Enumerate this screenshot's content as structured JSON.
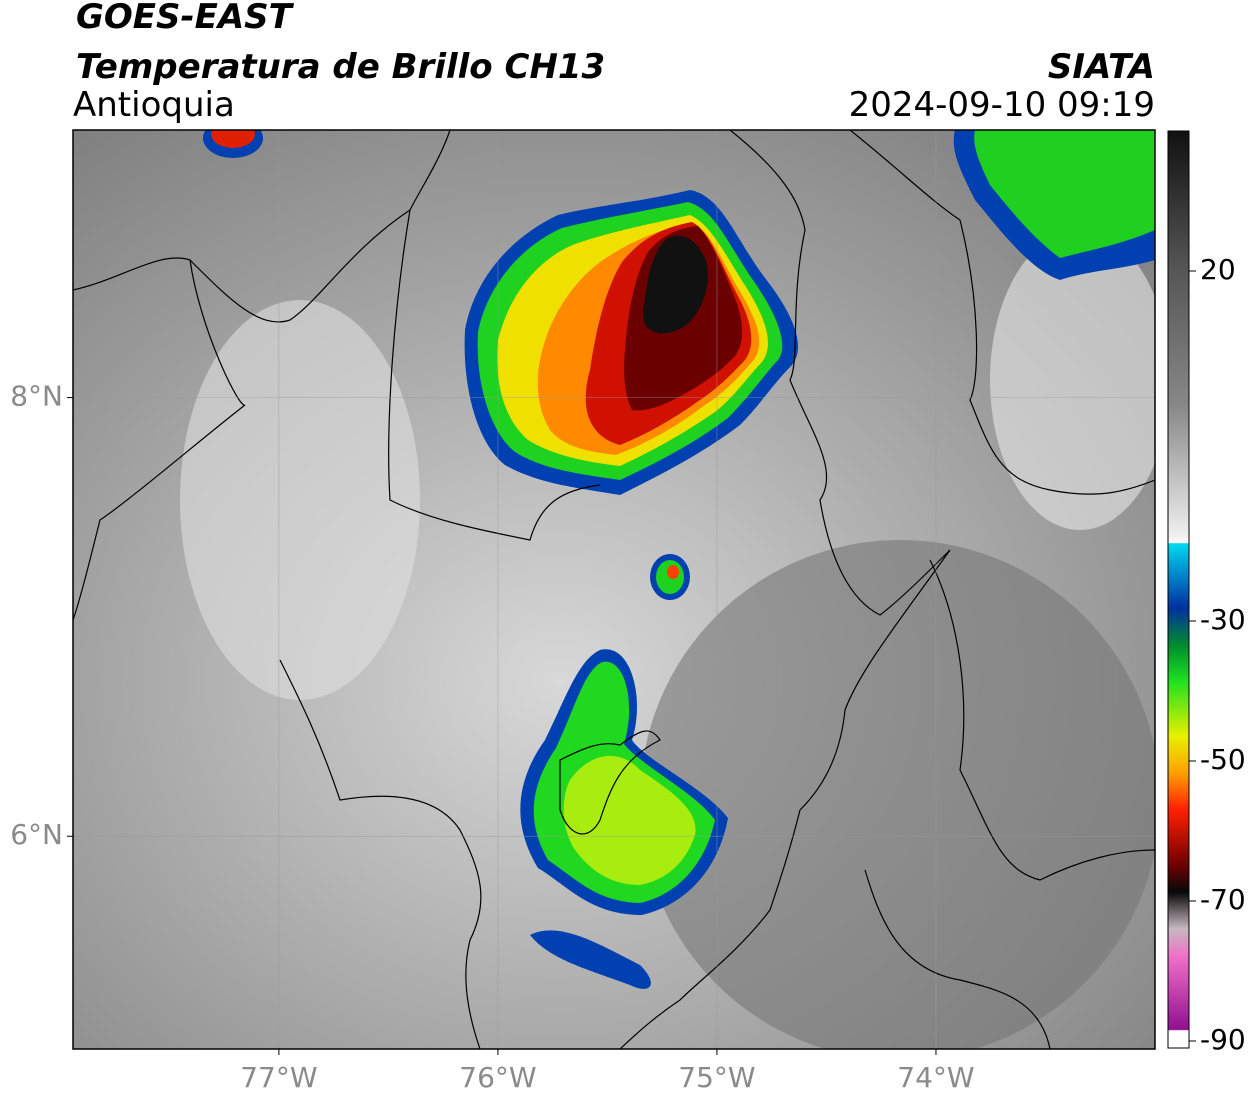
{
  "header": {
    "title": "GOES-EAST",
    "subtitle": "Temperatura de Brillo CH13",
    "region": "Antioquia",
    "source": "SIATA",
    "datetime": "2024-09-10 09:19"
  },
  "map": {
    "xlim": [
      -77.94,
      -73.0
    ],
    "ylim": [
      5.03,
      9.22
    ],
    "xticks": [
      {
        "value": -77,
        "label": "77°W"
      },
      {
        "value": -76,
        "label": "76°W"
      },
      {
        "value": -75,
        "label": "75°W"
      },
      {
        "value": -74,
        "label": "74°W"
      }
    ],
    "yticks": [
      {
        "value": 8,
        "label": "8°N"
      },
      {
        "value": 6,
        "label": "6°N"
      }
    ]
  },
  "colorbar": {
    "lim": [
      -91,
      40
    ],
    "ticks": [
      20,
      -30,
      -50,
      -70,
      -90
    ]
  }
}
